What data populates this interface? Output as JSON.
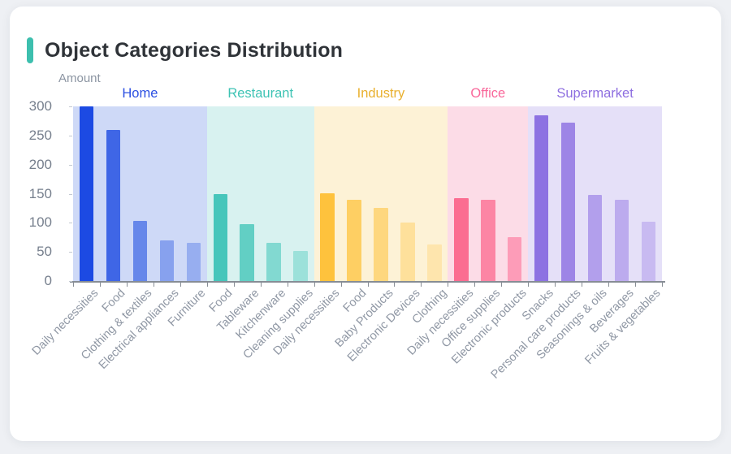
{
  "header": {
    "title": "Object Categories Distribution",
    "accent_color": "#3dbfae"
  },
  "chart_data": {
    "type": "bar",
    "title": "Object Categories Distribution",
    "ylabel": "Amount",
    "xlabel": "",
    "ylim": [
      0,
      300
    ],
    "yticks": [
      0,
      50,
      100,
      150,
      200,
      250,
      300
    ],
    "grid": false,
    "legend_position": "group-headers-top",
    "groups": [
      {
        "name": "Home",
        "label_color": "#2c50e2",
        "band_color": "#ced9f7",
        "bars": [
          {
            "label": "Daily necessities",
            "value": 300,
            "color": "#1c4ae3"
          },
          {
            "label": "Food",
            "value": 260,
            "color": "#3f66e6"
          },
          {
            "label": "Clothing & textiles",
            "value": 103,
            "color": "#6687ea"
          },
          {
            "label": "Electrical appliances",
            "value": 70,
            "color": "#87a1ee"
          },
          {
            "label": "Furniture",
            "value": 65,
            "color": "#97aef0"
          }
        ]
      },
      {
        "name": "Restaurant",
        "label_color": "#3ec3b4",
        "band_color": "#d8f2f0",
        "bars": [
          {
            "label": "Food",
            "value": 149,
            "color": "#46c6bb"
          },
          {
            "label": "Tableware",
            "value": 97,
            "color": "#62cfc4"
          },
          {
            "label": "Kitchenware",
            "value": 65,
            "color": "#82d9d1"
          },
          {
            "label": "Cleaning supplies",
            "value": 51,
            "color": "#9ce1da"
          }
        ]
      },
      {
        "name": "Industry",
        "label_color": "#e9b02e",
        "band_color": "#fdf2d6",
        "bars": [
          {
            "label": "Daily necessities",
            "value": 151,
            "color": "#fec23d"
          },
          {
            "label": "Food",
            "value": 139,
            "color": "#fecf63"
          },
          {
            "label": "Baby Products",
            "value": 126,
            "color": "#fed77e"
          },
          {
            "label": "Electronic Devices",
            "value": 100,
            "color": "#fee09b"
          },
          {
            "label": "Clothing",
            "value": 63,
            "color": "#fee5ad"
          }
        ]
      },
      {
        "name": "Office",
        "label_color": "#f9679a",
        "band_color": "#fcdce7",
        "bars": [
          {
            "label": "Daily necessities",
            "value": 142,
            "color": "#fb6d91"
          },
          {
            "label": "Office supplies",
            "value": 139,
            "color": "#fc85a4"
          },
          {
            "label": "Electronic products",
            "value": 75,
            "color": "#fd9cb8"
          }
        ]
      },
      {
        "name": "Supermarket",
        "label_color": "#8e6fe0",
        "band_color": "#e5e0f8",
        "bars": [
          {
            "label": "Snacks",
            "value": 285,
            "color": "#8d72e2"
          },
          {
            "label": "Personal care products",
            "value": 272,
            "color": "#9d85e6"
          },
          {
            "label": "Seasonings & oils",
            "value": 148,
            "color": "#b29fec"
          },
          {
            "label": "Beverages",
            "value": 140,
            "color": "#bcabee"
          },
          {
            "label": "Fruits & vegetables",
            "value": 102,
            "color": "#c8baf1"
          }
        ]
      }
    ]
  }
}
